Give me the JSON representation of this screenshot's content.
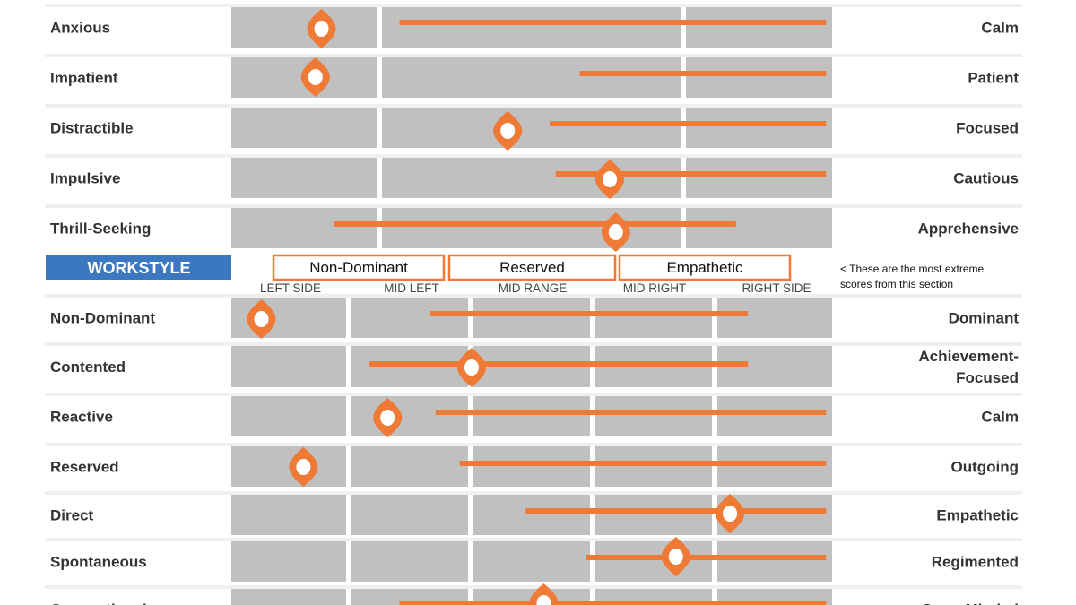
{
  "colors": {
    "accent": "#ee7a35",
    "track": "#c0c0c0",
    "row_band": "#eef0f1",
    "header": "#3b78bf",
    "label": "#333333"
  },
  "icons": {
    "marker": "location-pin-icon"
  },
  "section_title": "WORKSTYLE",
  "extreme_boxes": [
    "Non-Dominant",
    "Reserved",
    "Empathetic"
  ],
  "note": [
    "< These are the most extreme",
    "scores from this section"
  ],
  "zone_labels": [
    "LEFT SIDE",
    "MID LEFT",
    "MID RANGE",
    "MID RIGHT",
    "RIGHT SIDE"
  ],
  "chart_data": [
    {
      "type": "range",
      "xlim": [
        0,
        100
      ],
      "rows": [
        {
          "left": "Anxious",
          "right": "Calm",
          "score": 15,
          "range": [
            28,
            99
          ]
        },
        {
          "left": "Impatient",
          "right": "Patient",
          "score": 14,
          "range": [
            58,
            99
          ]
        },
        {
          "left": "Distractible",
          "right": "Focused",
          "score": 46,
          "range": [
            53,
            99
          ]
        },
        {
          "left": "Impulsive",
          "right": "Cautious",
          "score": 63,
          "range": [
            54,
            99
          ]
        },
        {
          "left": "Thrill-Seeking",
          "right": "Apprehensive",
          "score": 64,
          "range": [
            17,
            84
          ]
        }
      ]
    },
    {
      "type": "range",
      "xlim": [
        0,
        100
      ],
      "rows": [
        {
          "left": "Non-Dominant",
          "right": "Dominant",
          "score": 5,
          "range": [
            33,
            86
          ]
        },
        {
          "left": "Contented",
          "right": [
            "Achievement-",
            "Focused"
          ],
          "score": 40,
          "range": [
            23,
            86
          ]
        },
        {
          "left": "Reactive",
          "right": "Calm",
          "score": 26,
          "range": [
            34,
            99
          ]
        },
        {
          "left": "Reserved",
          "right": "Outgoing",
          "score": 12,
          "range": [
            38,
            99
          ]
        },
        {
          "left": "Direct",
          "right": "Empathetic",
          "score": 83,
          "range": [
            49,
            99
          ]
        },
        {
          "left": "Spontaneous",
          "right": "Regimented",
          "score": 74,
          "range": [
            59,
            99
          ]
        },
        {
          "left": "Conventional",
          "right": "Open-Minded",
          "score": 52,
          "range": [
            28,
            99
          ]
        }
      ]
    }
  ]
}
